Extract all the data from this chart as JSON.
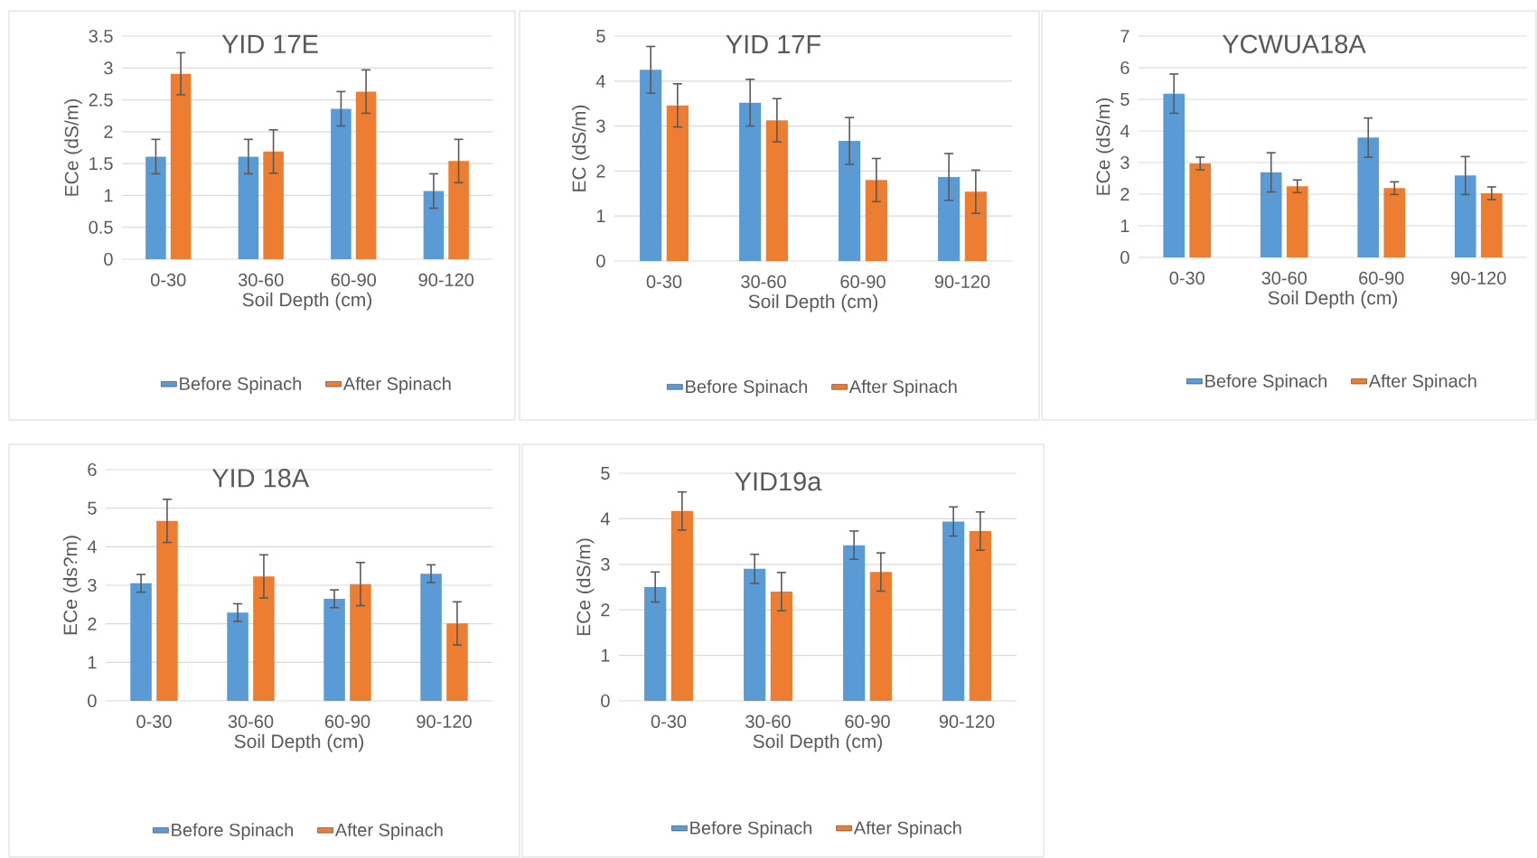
{
  "chart_data": [
    {
      "type": "bar",
      "title": "YID 17E",
      "xlabel": "Soil Depth (cm)",
      "ylabel": "ECe (dS/m)",
      "categories": [
        "0-30",
        "30-60",
        "60-90",
        "90-120"
      ],
      "series": [
        {
          "name": "Before Spinach",
          "color": "#5b9bd5",
          "values": [
            1.61,
            1.61,
            2.36,
            1.07
          ],
          "errors": [
            0.27,
            0.27,
            0.27,
            0.27
          ]
        },
        {
          "name": "After Spinach",
          "color": "#ed7d31",
          "values": [
            2.91,
            1.69,
            2.63,
            1.54
          ],
          "errors": [
            0.33,
            0.34,
            0.34,
            0.34
          ]
        }
      ],
      "ylim": [
        0,
        3.5
      ],
      "yticks": [
        0,
        0.5,
        1,
        1.5,
        2,
        2.5,
        3,
        3.5
      ],
      "grid": "y",
      "legend": "bottom"
    },
    {
      "type": "bar",
      "title": "YID 17F",
      "xlabel": "Soil Depth (cm)",
      "ylabel": "EC (dS/m)",
      "categories": [
        "0-30",
        "30-60",
        "60-90",
        "90-120"
      ],
      "series": [
        {
          "name": "Before Spinach",
          "color": "#5b9bd5",
          "values": [
            4.25,
            3.52,
            2.67,
            1.87
          ],
          "errors": [
            0.52,
            0.52,
            0.52,
            0.52
          ]
        },
        {
          "name": "After Spinach",
          "color": "#ed7d31",
          "values": [
            3.46,
            3.13,
            1.8,
            1.54
          ],
          "errors": [
            0.48,
            0.48,
            0.48,
            0.48
          ]
        }
      ],
      "ylim": [
        0,
        5
      ],
      "yticks": [
        0,
        1,
        2,
        3,
        4,
        5
      ],
      "grid": "y",
      "legend": "bottom"
    },
    {
      "type": "bar",
      "title": "YCWUA18A",
      "xlabel": "Soil Depth (cm)",
      "ylabel": "ECe (dS/m)",
      "categories": [
        "0-30",
        "30-60",
        "60-90",
        "90-120"
      ],
      "series": [
        {
          "name": "Before Spinach",
          "color": "#5b9bd5",
          "values": [
            5.18,
            2.69,
            3.79,
            2.59
          ],
          "errors": [
            0.62,
            0.62,
            0.62,
            0.6
          ]
        },
        {
          "name": "After Spinach",
          "color": "#ed7d31",
          "values": [
            2.97,
            2.25,
            2.19,
            2.03
          ],
          "errors": [
            0.2,
            0.2,
            0.2,
            0.2
          ]
        }
      ],
      "ylim": [
        0,
        7
      ],
      "yticks": [
        0,
        1,
        2,
        3,
        4,
        5,
        6,
        7
      ],
      "grid": "y",
      "legend": "bottom"
    },
    {
      "type": "bar",
      "title": "YID 18A",
      "xlabel": "Soil Depth (cm)",
      "ylabel": "ECe (ds?m)",
      "categories": [
        "0-30",
        "30-60",
        "60-90",
        "90-120"
      ],
      "series": [
        {
          "name": "Before Spinach",
          "color": "#5b9bd5",
          "values": [
            3.05,
            2.29,
            2.65,
            3.3
          ],
          "errors": [
            0.23,
            0.23,
            0.23,
            0.23
          ]
        },
        {
          "name": "After Spinach",
          "color": "#ed7d31",
          "values": [
            4.67,
            3.23,
            3.03,
            2.01
          ],
          "errors": [
            0.56,
            0.56,
            0.56,
            0.56
          ]
        }
      ],
      "ylim": [
        0,
        6
      ],
      "yticks": [
        0,
        1,
        2,
        3,
        4,
        5,
        6
      ],
      "grid": "y",
      "legend": "bottom"
    },
    {
      "type": "bar",
      "title": "YID19a",
      "xlabel": "Soil Depth (cm)",
      "ylabel": "ECe (dS/m)",
      "categories": [
        "0-30",
        "30-60",
        "60-90",
        "90-120"
      ],
      "series": [
        {
          "name": "Before Spinach",
          "color": "#5b9bd5",
          "values": [
            2.5,
            2.9,
            3.42,
            3.94
          ],
          "errors": [
            0.33,
            0.32,
            0.31,
            0.32
          ]
        },
        {
          "name": "After Spinach",
          "color": "#ed7d31",
          "values": [
            4.17,
            2.4,
            2.83,
            3.73
          ],
          "errors": [
            0.42,
            0.42,
            0.42,
            0.42
          ]
        }
      ],
      "ylim": [
        0,
        5
      ],
      "yticks": [
        0,
        1,
        2,
        3,
        4,
        5
      ],
      "grid": "y",
      "legend": "bottom"
    }
  ]
}
